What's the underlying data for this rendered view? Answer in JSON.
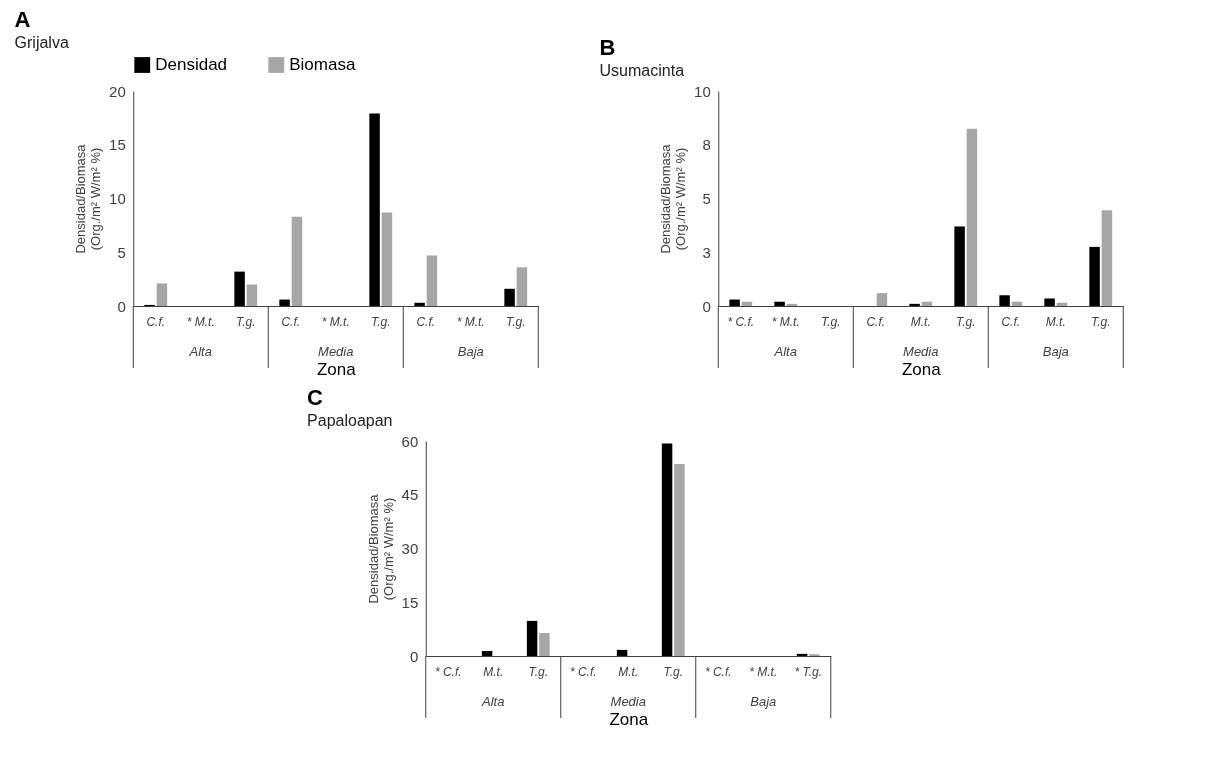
{
  "chart_data": [
    {
      "type": "bar",
      "title": "A",
      "subtitle": "Grijalva",
      "xlabel": "Zona",
      "ylabel": "Densidad/Biomasa\n(Org./m²   W/m² %)",
      "categories": [
        "C.f.",
        "* M.t.",
        "T.g.",
        "C.f.",
        "* M.t.",
        "T.g.",
        "C.f.",
        "* M.t.",
        "T.g."
      ],
      "annotations": [
        "Alta",
        "Media",
        "Baja"
      ],
      "series": [
        {
          "name": "Densidad",
          "color": "#000000",
          "values": [
            0.1,
            null,
            3.2,
            0.6,
            null,
            17.9,
            0.3,
            null,
            1.6
          ]
        },
        {
          "name": "Biomasa",
          "color": "#a6a6a6",
          "values": [
            2.1,
            null,
            2.0,
            8.3,
            null,
            8.7,
            4.7,
            null,
            3.6
          ]
        }
      ],
      "ylim": [
        0,
        20
      ],
      "yticks": [
        0,
        5,
        10,
        15,
        20
      ],
      "grid": false,
      "legend": "top"
    },
    {
      "type": "bar",
      "title": "B",
      "subtitle": "Usumacinta",
      "xlabel": "Zona",
      "ylabel": "Densidad/Biomasa\n(Org./m²   W/m² %)",
      "categories": [
        "* C.f.",
        "* M.t.",
        "T.g.",
        "C.f.",
        "M.t.",
        "T.g.",
        "C.f.",
        "M.t.",
        "T.g."
      ],
      "annotations": [
        "Alta",
        "Media",
        "Baja"
      ],
      "series": [
        {
          "color": "#000000",
          "values": [
            0.3,
            0.2,
            null,
            null,
            0.1,
            3.7,
            0.5,
            0.35,
            2.75
          ]
        },
        {
          "color": "#a6a6a6",
          "values": [
            0.2,
            0.1,
            null,
            0.6,
            0.2,
            8.25,
            0.2,
            0.15,
            4.45
          ]
        }
      ],
      "ylim": [
        0,
        10
      ],
      "yticks": [
        0,
        {
          "value": 2.5,
          "label": "3"
        },
        5,
        {
          "value": 7.5,
          "label": "8"
        },
        10
      ],
      "grid": false,
      "legend": false
    },
    {
      "type": "bar",
      "title": "C",
      "subtitle": "Papaloapan",
      "xlabel": "Zona",
      "ylabel": "Densidad/Biomasa\n(Org./m²   W/m² %)",
      "categories": [
        "* C.f.",
        "M.t.",
        "T.g.",
        "* C.f.",
        "M.t.",
        "T.g.",
        "* C.f.",
        "* M.t.",
        "* T.g."
      ],
      "annotations": [
        "Alta",
        "Media",
        "Baja"
      ],
      "series": [
        {
          "color": "#000000",
          "values": [
            null,
            1.4,
            9.8,
            null,
            1.7,
            59.3,
            null,
            null,
            0.6
          ]
        },
        {
          "color": "#a6a6a6",
          "values": [
            null,
            null,
            6.4,
            null,
            null,
            53.6,
            null,
            null,
            0.5
          ]
        }
      ],
      "ylim": [
        0,
        60
      ],
      "yticks": [
        0,
        15,
        30,
        45,
        60
      ],
      "grid": false,
      "legend": false
    }
  ]
}
